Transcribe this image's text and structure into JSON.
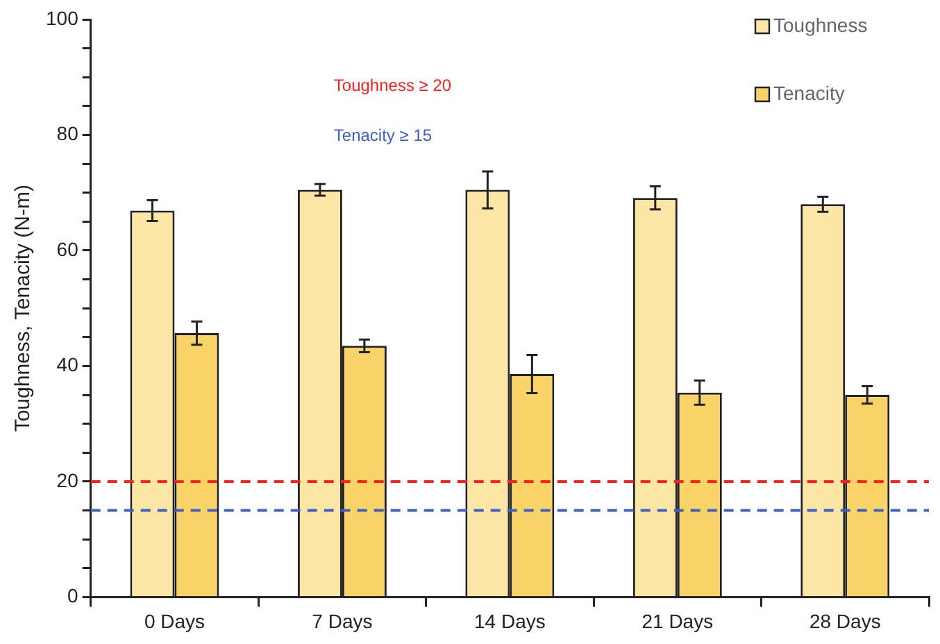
{
  "chart_data": {
    "type": "bar",
    "ylabel": "Toughness, Tenacity (N-m)",
    "categories": [
      "0 Days",
      "7 Days",
      "14 Days",
      "21 Days",
      "28 Days"
    ],
    "series": [
      {
        "name": "Toughness",
        "color": "#fbe6a6",
        "values": [
          66.9,
          70.5,
          70.5,
          69.1,
          68.0
        ],
        "errors": [
          1.8,
          1.0,
          3.2,
          2.0,
          1.3
        ]
      },
      {
        "name": "Tenacity",
        "color": "#f8d468",
        "values": [
          45.7,
          43.5,
          38.6,
          35.4,
          35.0
        ],
        "errors": [
          2.0,
          1.1,
          3.3,
          2.1,
          1.5
        ]
      }
    ],
    "ylim": [
      0,
      100
    ],
    "yticks": [
      0,
      {
        "value": 5,
        "label": null
      },
      {
        "value": 10,
        "label": null
      },
      {
        "value": 15,
        "label": null
      },
      20,
      {
        "value": 25,
        "label": null
      },
      {
        "value": 30,
        "label": null
      },
      {
        "value": 35,
        "label": null
      },
      40,
      {
        "value": 45,
        "label": null
      },
      {
        "value": 50,
        "label": null
      },
      {
        "value": 55,
        "label": null
      },
      60,
      {
        "value": 65,
        "label": null
      },
      {
        "value": 70,
        "label": null
      },
      {
        "value": 75,
        "label": null
      },
      80,
      {
        "value": 85,
        "label": null
      },
      {
        "value": 90,
        "label": null
      },
      {
        "value": 95,
        "label": null
      },
      100
    ],
    "ref_lines": [
      {
        "axis": "y",
        "value": 20,
        "label": "Toughness ≥ 20",
        "color": "#ff2020",
        "line_style": "dashed"
      },
      {
        "axis": "y",
        "value": 15,
        "label": "Tenacity ≥ 15",
        "color": "#4060c0",
        "line_style": "dashed"
      }
    ],
    "grid": false,
    "legend": "top right"
  }
}
